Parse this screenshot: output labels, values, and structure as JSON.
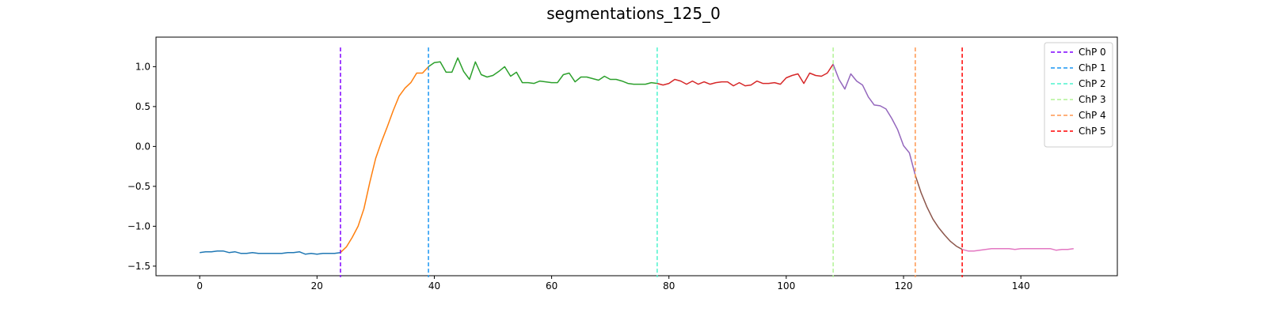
{
  "chart_data": {
    "type": "line",
    "title": "segmentations_125_0",
    "xlabel": "",
    "ylabel": "",
    "xlim": [
      -7.45,
      156.45
    ],
    "ylim": [
      -1.62,
      1.37
    ],
    "xticks": [
      0,
      20,
      40,
      60,
      80,
      100,
      120,
      140
    ],
    "yticks": [
      -1.5,
      -1.0,
      -0.5,
      0.0,
      0.5,
      1.0
    ],
    "xtick_labels": [
      "0",
      "20",
      "40",
      "60",
      "80",
      "100",
      "120",
      "140"
    ],
    "ytick_labels": [
      "−1.5",
      "−1.0",
      "−0.5",
      "0.0",
      "0.5",
      "1.0"
    ],
    "grid": false,
    "legend_placement": "top-right",
    "segments": [
      {
        "color": "#1f77b4",
        "x": [
          0,
          1,
          2,
          3,
          4,
          5,
          6,
          7,
          8,
          9,
          10,
          11,
          12,
          13,
          14,
          15,
          16,
          17,
          18,
          19,
          20,
          21,
          22,
          23,
          24
        ],
        "y": [
          -1.33,
          -1.32,
          -1.32,
          -1.31,
          -1.31,
          -1.33,
          -1.32,
          -1.34,
          -1.34,
          -1.33,
          -1.34,
          -1.34,
          -1.34,
          -1.34,
          -1.34,
          -1.33,
          -1.33,
          -1.32,
          -1.35,
          -1.34,
          -1.35,
          -1.34,
          -1.34,
          -1.34,
          -1.33
        ]
      },
      {
        "color": "#ff7f0e",
        "x": [
          24,
          25,
          26,
          27,
          28,
          29,
          30,
          31,
          32,
          33,
          34,
          35,
          36,
          37,
          38,
          39
        ],
        "y": [
          -1.33,
          -1.26,
          -1.14,
          -1.0,
          -0.78,
          -0.45,
          -0.15,
          0.06,
          0.25,
          0.45,
          0.63,
          0.73,
          0.8,
          0.92,
          0.92,
          1.0
        ]
      },
      {
        "color": "#2ca02c",
        "x": [
          39,
          40,
          41,
          42,
          43,
          44,
          45,
          46,
          47,
          48,
          49,
          50,
          51,
          52,
          53,
          54,
          55,
          56,
          57,
          58,
          59,
          60,
          61,
          62,
          63,
          64,
          65,
          66,
          67,
          68,
          69,
          70,
          71,
          72,
          73,
          74,
          75,
          76,
          77,
          78
        ],
        "y": [
          1.0,
          1.05,
          1.06,
          0.93,
          0.93,
          1.11,
          0.94,
          0.84,
          1.06,
          0.9,
          0.87,
          0.89,
          0.94,
          1.0,
          0.88,
          0.93,
          0.8,
          0.8,
          0.79,
          0.82,
          0.81,
          0.8,
          0.8,
          0.9,
          0.92,
          0.81,
          0.87,
          0.87,
          0.85,
          0.83,
          0.88,
          0.84,
          0.84,
          0.82,
          0.79,
          0.78,
          0.78,
          0.78,
          0.8,
          0.79
        ]
      },
      {
        "color": "#d62728",
        "x": [
          78,
          79,
          80,
          81,
          82,
          83,
          84,
          85,
          86,
          87,
          88,
          89,
          90,
          91,
          92,
          93,
          94,
          95,
          96,
          97,
          98,
          99,
          100,
          101,
          102,
          103,
          104,
          105,
          106,
          107,
          108
        ],
        "y": [
          0.79,
          0.77,
          0.79,
          0.84,
          0.82,
          0.78,
          0.82,
          0.78,
          0.81,
          0.78,
          0.8,
          0.81,
          0.81,
          0.76,
          0.8,
          0.76,
          0.77,
          0.82,
          0.79,
          0.79,
          0.8,
          0.78,
          0.86,
          0.89,
          0.91,
          0.79,
          0.92,
          0.89,
          0.88,
          0.92,
          1.03
        ]
      },
      {
        "color": "#9467bd",
        "x": [
          108,
          109,
          110,
          111,
          112,
          113,
          114,
          115,
          116,
          117,
          118,
          119,
          120,
          121,
          122
        ],
        "y": [
          1.03,
          0.84,
          0.72,
          0.91,
          0.82,
          0.77,
          0.62,
          0.52,
          0.51,
          0.47,
          0.35,
          0.21,
          0.01,
          -0.08,
          -0.36
        ]
      },
      {
        "color": "#8c564b",
        "x": [
          122,
          123,
          124,
          125,
          126,
          127,
          128,
          129,
          130
        ],
        "y": [
          -0.36,
          -0.58,
          -0.76,
          -0.91,
          -1.02,
          -1.11,
          -1.19,
          -1.25,
          -1.29
        ]
      },
      {
        "color": "#e377c2",
        "x": [
          130,
          131,
          132,
          133,
          134,
          135,
          136,
          137,
          138,
          139,
          140,
          141,
          142,
          143,
          144,
          145,
          146,
          147,
          148,
          149
        ],
        "y": [
          -1.29,
          -1.31,
          -1.31,
          -1.3,
          -1.29,
          -1.28,
          -1.28,
          -1.28,
          -1.28,
          -1.29,
          -1.28,
          -1.28,
          -1.28,
          -1.28,
          -1.28,
          -1.28,
          -1.3,
          -1.29,
          -1.29,
          -1.28
        ]
      }
    ],
    "changepoints": [
      {
        "name": "ChP 0",
        "x": 24,
        "color": "#7f00ff"
      },
      {
        "name": "ChP 1",
        "x": 39,
        "color": "#1996f3"
      },
      {
        "name": "ChP 2",
        "x": 78,
        "color": "#4df3ce"
      },
      {
        "name": "ChP 3",
        "x": 108,
        "color": "#b2f396"
      },
      {
        "name": "ChP 4",
        "x": 122,
        "color": "#ff964f"
      },
      {
        "name": "ChP 5",
        "x": 130,
        "color": "#ff0000"
      }
    ]
  }
}
